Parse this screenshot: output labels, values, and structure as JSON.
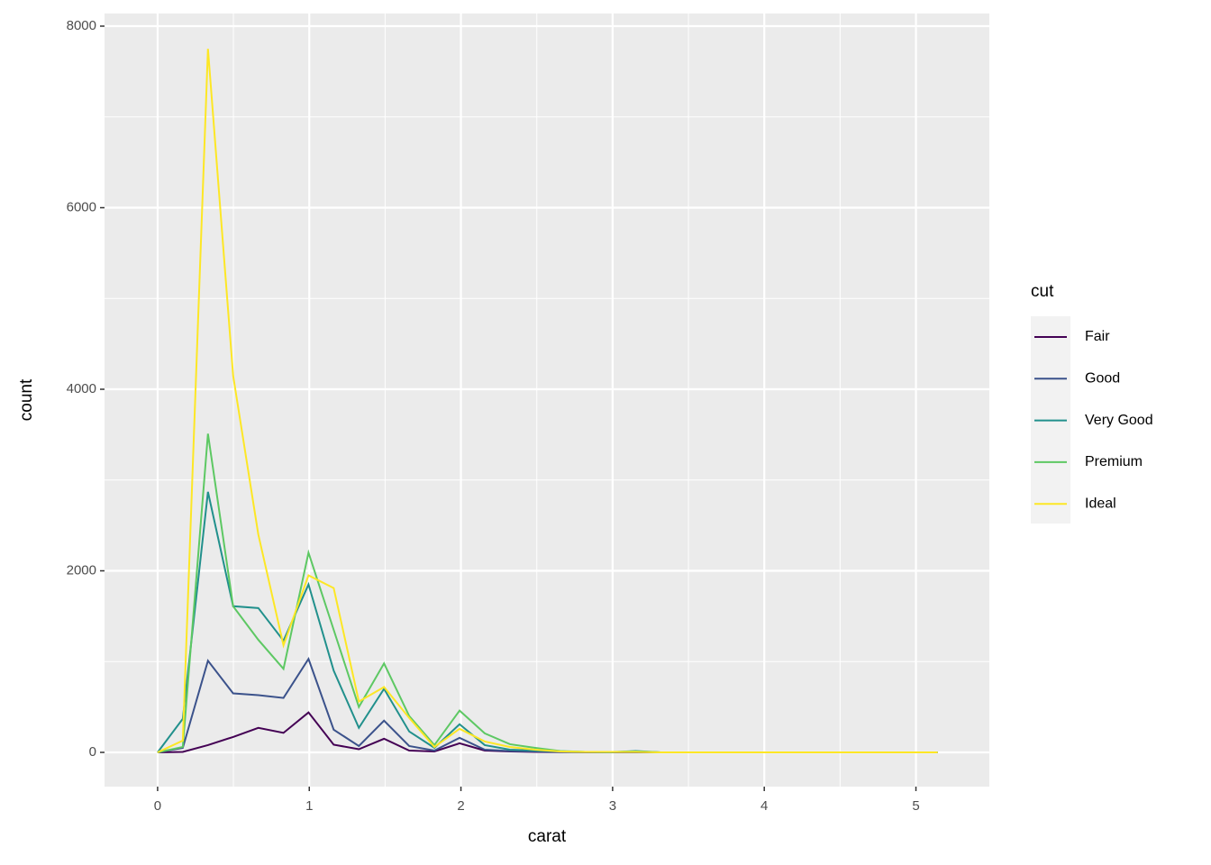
{
  "chart_data": {
    "type": "line",
    "x_label": "carat",
    "y_label": "count",
    "legend_title": "cut",
    "x": [
      0,
      0.166,
      0.332,
      0.498,
      0.664,
      0.83,
      0.995,
      1.161,
      1.327,
      1.493,
      1.659,
      1.825,
      1.991,
      2.157,
      2.323,
      2.489,
      2.654,
      2.82,
      2.986,
      3.152,
      3.318,
      3.484,
      3.65,
      3.816,
      3.982,
      4.148,
      4.313,
      4.479,
      4.645,
      4.811,
      4.977,
      5.143
    ],
    "series": [
      {
        "name": "Fair",
        "color": "#440154",
        "values": [
          0,
          5,
          80,
          170,
          270,
          215,
          440,
          85,
          35,
          150,
          20,
          10,
          100,
          20,
          10,
          5,
          3,
          2,
          1,
          2,
          0,
          0,
          0,
          0,
          0,
          0,
          0,
          0,
          0,
          0,
          0,
          0
        ]
      },
      {
        "name": "Good",
        "color": "#3b528b",
        "values": [
          0,
          50,
          1010,
          650,
          630,
          600,
          1030,
          250,
          70,
          350,
          70,
          20,
          160,
          30,
          15,
          10,
          5,
          2,
          1,
          3,
          0,
          0,
          0,
          0,
          0,
          0,
          0,
          0,
          0,
          0,
          0,
          0
        ]
      },
      {
        "name": "Very Good",
        "color": "#21908c",
        "values": [
          0,
          370,
          2870,
          1610,
          1590,
          1230,
          1850,
          900,
          270,
          700,
          230,
          50,
          310,
          80,
          30,
          20,
          10,
          5,
          2,
          15,
          0,
          0,
          0,
          0,
          0,
          0,
          0,
          0,
          0,
          0,
          0,
          0
        ]
      },
      {
        "name": "Premium",
        "color": "#5dc863",
        "values": [
          0,
          60,
          3510,
          1610,
          1240,
          920,
          2200,
          1350,
          500,
          980,
          400,
          80,
          460,
          210,
          90,
          50,
          15,
          5,
          5,
          10,
          0,
          0,
          0,
          0,
          0,
          0,
          0,
          0,
          0,
          0,
          0,
          0
        ]
      },
      {
        "name": "Ideal",
        "color": "#fde725",
        "values": [
          0,
          130,
          7750,
          4150,
          2400,
          1180,
          1950,
          1810,
          560,
          720,
          380,
          60,
          260,
          120,
          60,
          30,
          10,
          5,
          5,
          5,
          0,
          0,
          0,
          0,
          0,
          0,
          0,
          0,
          0,
          0,
          0,
          0
        ]
      }
    ],
    "xlim": [
      -0.35,
      5.484
    ],
    "ylim": [
      -377,
      8139
    ],
    "xticks": [
      0,
      1,
      2,
      3,
      4,
      5
    ],
    "yticks": [
      0,
      2000,
      4000,
      6000,
      8000
    ],
    "grid": true
  }
}
